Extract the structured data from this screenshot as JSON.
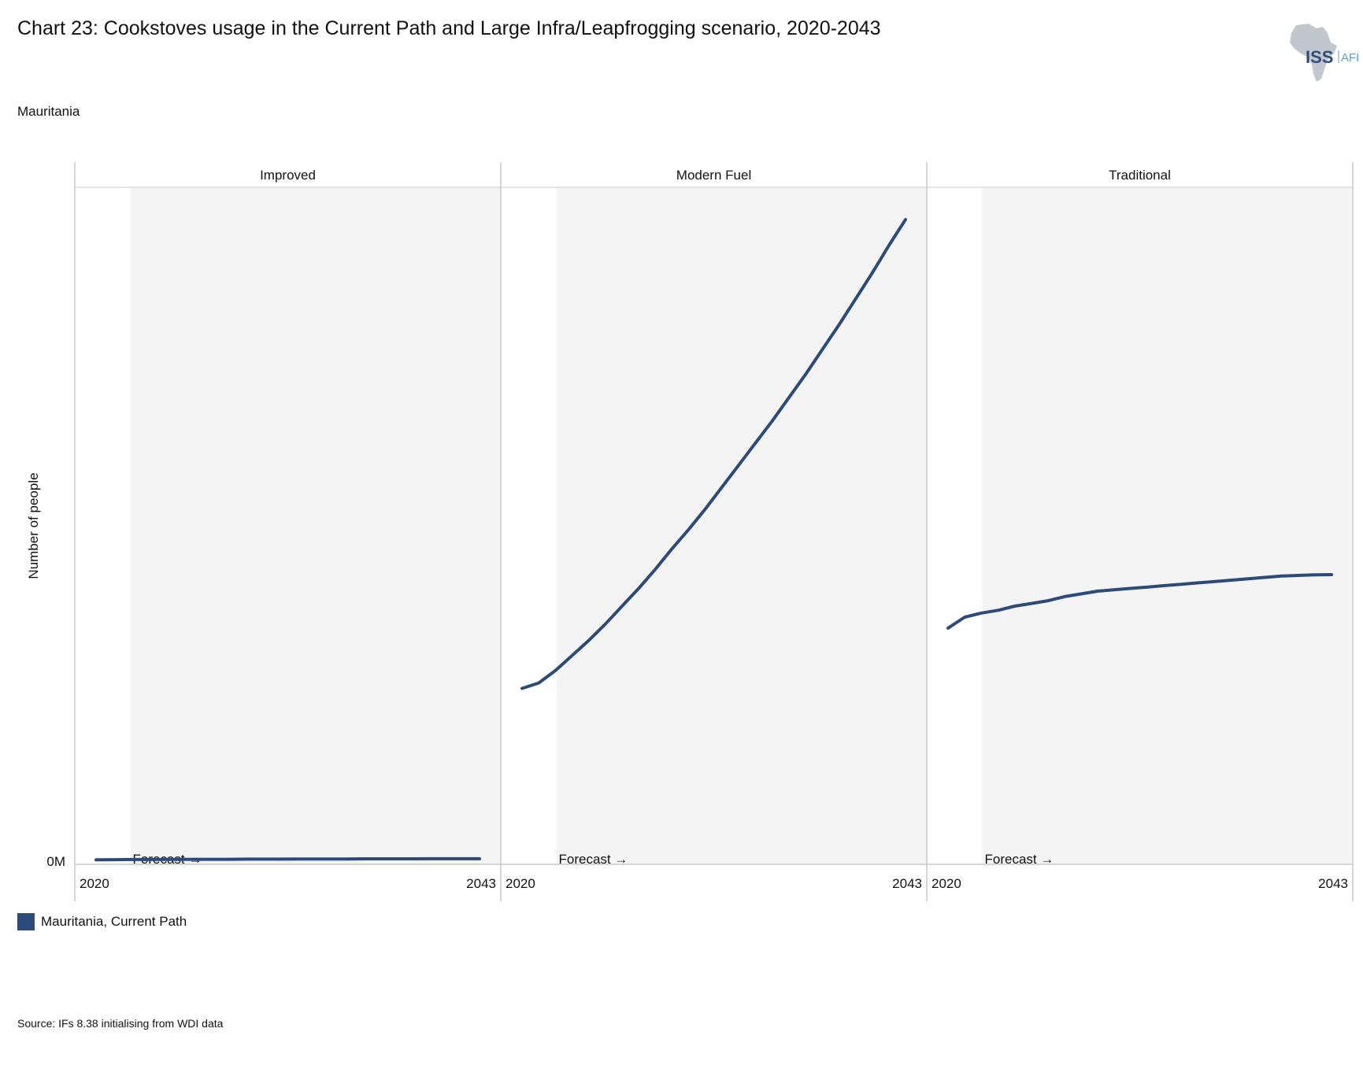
{
  "title": "Chart 23: Cookstoves usage in the Current Path and Large Infra/Leapfrogging scenario, 2020-2043",
  "subtitle": "Mauritania",
  "source": "Source: IFs 8.38 initialising from WDI data",
  "logo": {
    "text_main": "ISS",
    "text_side": "AFI",
    "icon": "africa-map-icon"
  },
  "colors": {
    "series": "#2c4a7a",
    "forecast_band": "#f4f4f4",
    "axis": "#c8c8c8",
    "logo_map": "#c2c7ce",
    "logo_main": "#2f4d7a",
    "logo_side": "#5a9bd5"
  },
  "chart_data": {
    "type": "line",
    "ylabel": "Number of people",
    "y_tick_label": "0M",
    "forecast_label": "Forecast →",
    "forecast_start_year": 2023,
    "x_tick_labels": [
      "2020",
      "2043"
    ],
    "xlim": [
      2020,
      2043
    ],
    "ylim": [
      0,
      4.8
    ],
    "series_name": "Mauritania, Current Path",
    "legend": "bottom-left",
    "panels": [
      {
        "name": "Improved",
        "x": [
          2020,
          2021,
          2022,
          2023,
          2024,
          2025,
          2026,
          2027,
          2028,
          2029,
          2030,
          2031,
          2032,
          2033,
          2034,
          2035,
          2036,
          2037,
          2038,
          2039,
          2040,
          2041,
          2042,
          2043
        ],
        "values": [
          0.01,
          0.011,
          0.012,
          0.012,
          0.013,
          0.013,
          0.014,
          0.014,
          0.014,
          0.015,
          0.015,
          0.015,
          0.016,
          0.016,
          0.016,
          0.016,
          0.017,
          0.017,
          0.017,
          0.017,
          0.018,
          0.018,
          0.018,
          0.018
        ]
      },
      {
        "name": "Modern Fuel",
        "x": [
          2020,
          2021,
          2022,
          2023,
          2024,
          2025,
          2026,
          2027,
          2028,
          2029,
          2030,
          2031,
          2032,
          2033,
          2034,
          2035,
          2036,
          2037,
          2038,
          2039,
          2040,
          2041,
          2042,
          2043
        ],
        "values": [
          1.26,
          1.3,
          1.39,
          1.5,
          1.61,
          1.73,
          1.86,
          1.99,
          2.13,
          2.28,
          2.42,
          2.57,
          2.73,
          2.89,
          3.05,
          3.21,
          3.38,
          3.55,
          3.73,
          3.91,
          4.1,
          4.29,
          4.49,
          4.68
        ]
      },
      {
        "name": "Traditional",
        "x": [
          2020,
          2021,
          2022,
          2023,
          2024,
          2025,
          2026,
          2027,
          2028,
          2029,
          2030,
          2031,
          2032,
          2033,
          2034,
          2035,
          2036,
          2037,
          2038,
          2039,
          2040,
          2041,
          2042,
          2043
        ],
        "values": [
          1.7,
          1.78,
          1.81,
          1.83,
          1.86,
          1.88,
          1.9,
          1.93,
          1.95,
          1.97,
          1.98,
          1.99,
          2.0,
          2.01,
          2.02,
          2.03,
          2.04,
          2.05,
          2.06,
          2.07,
          2.08,
          2.084,
          2.088,
          2.09
        ]
      }
    ]
  }
}
